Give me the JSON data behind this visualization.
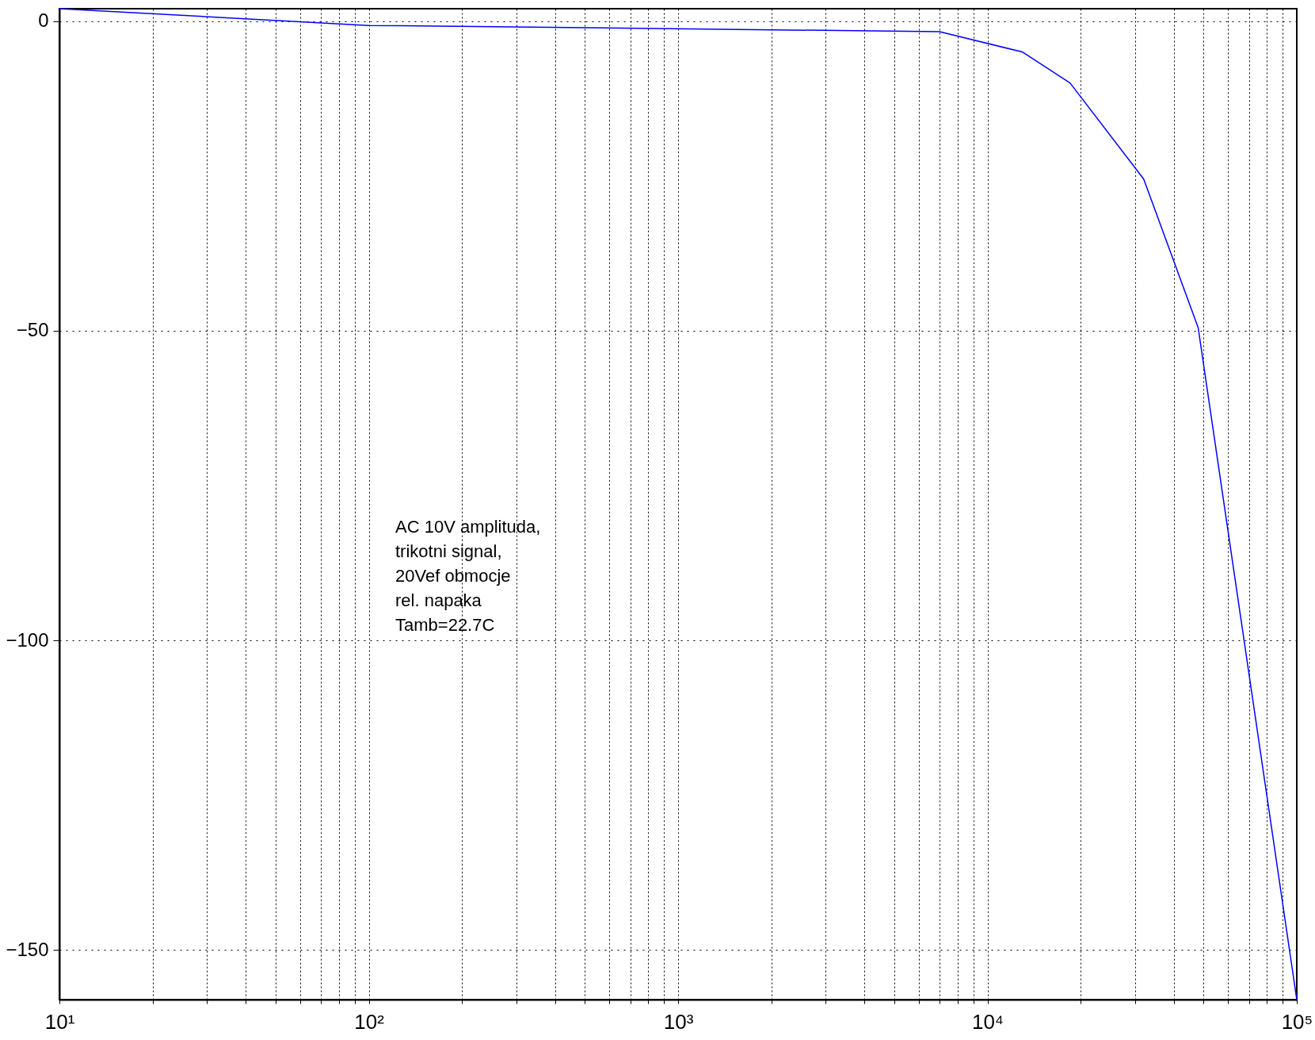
{
  "chart_data": {
    "type": "line",
    "log": "x",
    "grid": true,
    "marker": "none",
    "line_style": "solid",
    "x": [
      10,
      100,
      7000,
      13000,
      18500,
      32000,
      48000,
      100000
    ],
    "series": [
      {
        "color": "#0000ff",
        "values": [
          2,
          -0.7,
          -1.7,
          -5,
          -10,
          -25.5,
          -49.5,
          -158
        ]
      }
    ],
    "xlim": [
      10,
      100000
    ],
    "ylim": [
      -158,
      2
    ],
    "xticks": [
      {
        "value": 10,
        "label": "10¹"
      },
      {
        "value": 20,
        "label": null
      },
      {
        "value": 30,
        "label": null
      },
      {
        "value": 40,
        "label": null
      },
      {
        "value": 50,
        "label": null
      },
      {
        "value": 60,
        "label": null
      },
      {
        "value": 70,
        "label": null
      },
      {
        "value": 80,
        "label": null
      },
      {
        "value": 90,
        "label": null
      },
      {
        "value": 100,
        "label": "10²"
      },
      {
        "value": 200,
        "label": null
      },
      {
        "value": 300,
        "label": null
      },
      {
        "value": 400,
        "label": null
      },
      {
        "value": 500,
        "label": null
      },
      {
        "value": 600,
        "label": null
      },
      {
        "value": 700,
        "label": null
      },
      {
        "value": 800,
        "label": null
      },
      {
        "value": 900,
        "label": null
      },
      {
        "value": 1000,
        "label": "10³"
      },
      {
        "value": 2000,
        "label": null
      },
      {
        "value": 3000,
        "label": null
      },
      {
        "value": 4000,
        "label": null
      },
      {
        "value": 5000,
        "label": null
      },
      {
        "value": 6000,
        "label": null
      },
      {
        "value": 7000,
        "label": null
      },
      {
        "value": 8000,
        "label": null
      },
      {
        "value": 9000,
        "label": null
      },
      {
        "value": 10000,
        "label": "10⁴"
      },
      {
        "value": 20000,
        "label": null
      },
      {
        "value": 30000,
        "label": null
      },
      {
        "value": 40000,
        "label": null
      },
      {
        "value": 50000,
        "label": null
      },
      {
        "value": 60000,
        "label": null
      },
      {
        "value": 70000,
        "label": null
      },
      {
        "value": 80000,
        "label": null
      },
      {
        "value": 90000,
        "label": null
      },
      {
        "value": 100000,
        "label": "10⁵"
      }
    ],
    "yticks": [
      0,
      -50,
      -100,
      -150
    ],
    "annotations": [
      "AC 10V amplituda,\ntrikotni signal,\n20Vef obmocje\nrel. napaka\nTamb=22.7C"
    ]
  }
}
